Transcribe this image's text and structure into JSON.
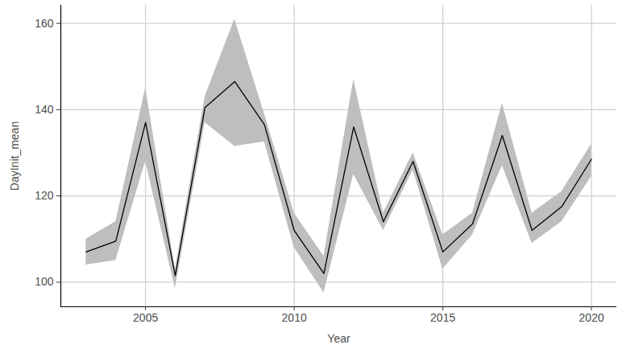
{
  "chart_data": {
    "type": "line",
    "x_label": "Year",
    "y_label": "DayInit_mean",
    "x": [
      2003,
      2004,
      2005,
      2006,
      2007,
      2008,
      2009,
      2010,
      2011,
      2012,
      2013,
      2014,
      2015,
      2016,
      2017,
      2018,
      2019,
      2020
    ],
    "values": [
      107,
      109.5,
      137,
      101.5,
      140.5,
      146.5,
      136.5,
      112,
      102,
      136,
      114,
      128,
      107,
      113.5,
      134,
      112,
      117.5,
      128.5
    ],
    "lower": [
      104,
      105,
      128,
      98.5,
      137,
      131.5,
      132.5,
      108,
      97.5,
      125,
      112,
      126,
      103,
      111,
      127,
      109,
      114,
      124.5
    ],
    "upper": [
      110,
      114,
      145,
      103,
      143,
      161,
      139,
      116,
      106,
      147,
      116,
      130,
      111,
      116,
      141.5,
      116,
      121,
      132
    ],
    "color": "#000000",
    "xlim": [
      2002.15,
      2020.85
    ],
    "xticks": [
      2005,
      2010,
      2015,
      2020
    ],
    "ylim": [
      94.3,
      164.2
    ],
    "yticks": [
      100,
      120,
      140,
      160
    ],
    "grid": true
  }
}
